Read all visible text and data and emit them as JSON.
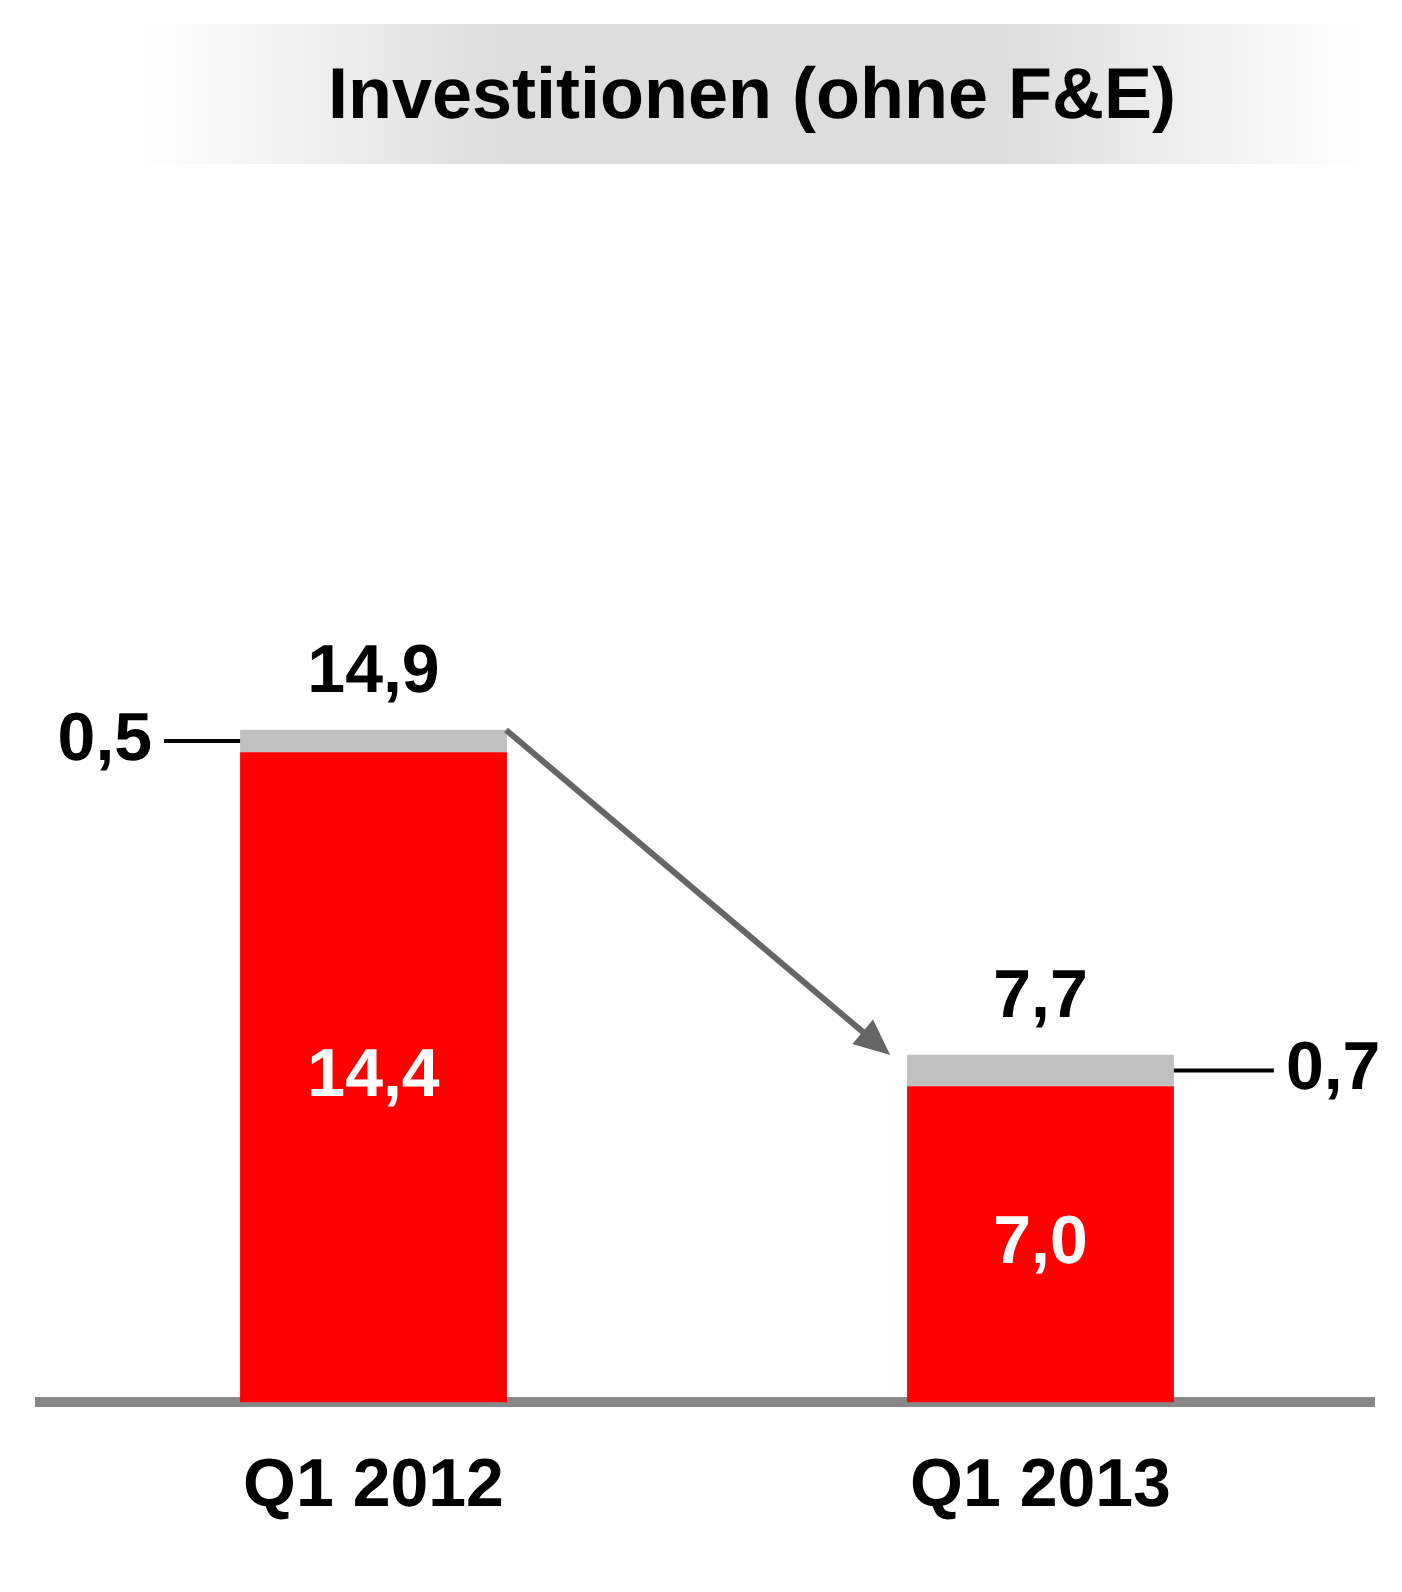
{
  "chart_data": {
    "type": "bar",
    "title": "Investitionen (ohne F&E)",
    "categories": [
      "Q1 2012",
      "Q1 2013"
    ],
    "stacked": true,
    "series": [
      {
        "color": "#ff0000",
        "values": [
          14.4,
          7.0
        ],
        "value_labels": [
          "14,4",
          "7,0"
        ]
      },
      {
        "color": "#c0c0c0",
        "values": [
          0.5,
          0.7
        ],
        "value_labels": [
          "0,5",
          "0,7"
        ]
      }
    ],
    "totals": [
      "14,9",
      "7,7"
    ],
    "grid": false,
    "legend": false,
    "tick_labels": "x"
  }
}
